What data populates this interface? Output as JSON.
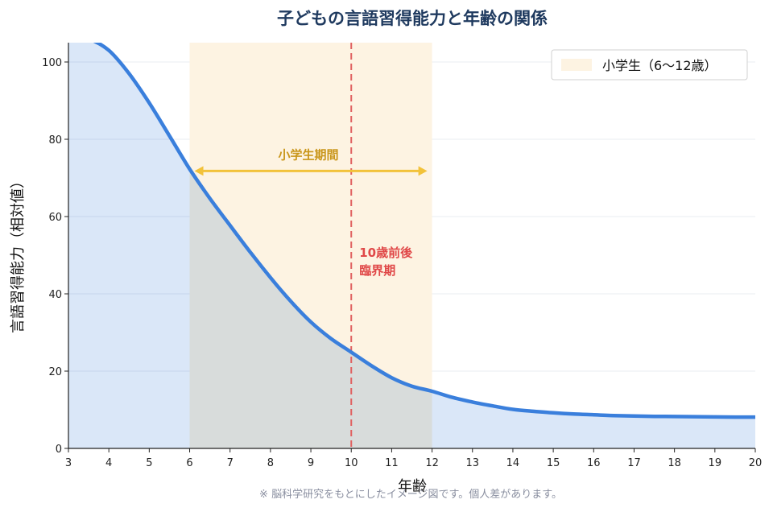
{
  "colors": {
    "title": "#1f3a5f",
    "curve": "#3a7fdc",
    "curve_fill": "#d6e4f7",
    "band": "#fdf3e2",
    "threshold": "#e06060",
    "threshold_text": "#e04848",
    "period_arrow": "#f2c23a",
    "period_text": "#c9961a",
    "grid": "#e8ecf2"
  },
  "chart_data": {
    "type": "area",
    "title": "子どもの言語習得能力と年齢の関係",
    "xlabel": "年齢",
    "ylabel": "言語習得能力（相対値）",
    "xlim": [
      3,
      20
    ],
    "ylim": [
      0,
      105
    ],
    "x_ticks": [
      3,
      4,
      5,
      6,
      7,
      8,
      9,
      10,
      11,
      12,
      13,
      14,
      15,
      16,
      17,
      18,
      19,
      20
    ],
    "y_ticks": [
      0,
      20,
      40,
      60,
      80,
      100
    ],
    "grid": "horizontal",
    "series": [
      {
        "x": [
          3,
          3.5,
          4,
          4.5,
          5,
          5.5,
          6,
          6.5,
          7,
          7.5,
          8,
          8.5,
          9,
          9.5,
          10,
          10.5,
          11,
          11.5,
          12,
          12.5,
          13,
          13.5,
          14,
          14.5,
          15,
          15.5,
          16,
          16.5,
          17,
          17.5,
          18,
          18.5,
          19,
          19.5,
          20
        ],
        "values": [
          107,
          106,
          103,
          97,
          89.4,
          80.9,
          72.3,
          64.7,
          57.7,
          50.8,
          44.2,
          38.1,
          32.7,
          28.4,
          24.9,
          21.4,
          18.3,
          16.1,
          14.8,
          13.2,
          12,
          11,
          10.1,
          9.6,
          9.2,
          8.9,
          8.7,
          8.5,
          8.4,
          8.3,
          8.25,
          8.2,
          8.15,
          8.1,
          8.1
        ]
      }
    ],
    "band": {
      "x_start": 6,
      "x_end": 12
    },
    "legend": {
      "position": "top-right",
      "label": "小学生（6〜12歳）"
    },
    "threshold_line": {
      "x": 10,
      "label_lines": [
        "10歳前後",
        "臨界期"
      ]
    },
    "period_arrow": {
      "x_start": 6,
      "x_end": 12,
      "y": 72,
      "label": "小学生期間"
    },
    "footnote": "※ 脳科学研究をもとにしたイメージ図です。個人差があります。"
  }
}
